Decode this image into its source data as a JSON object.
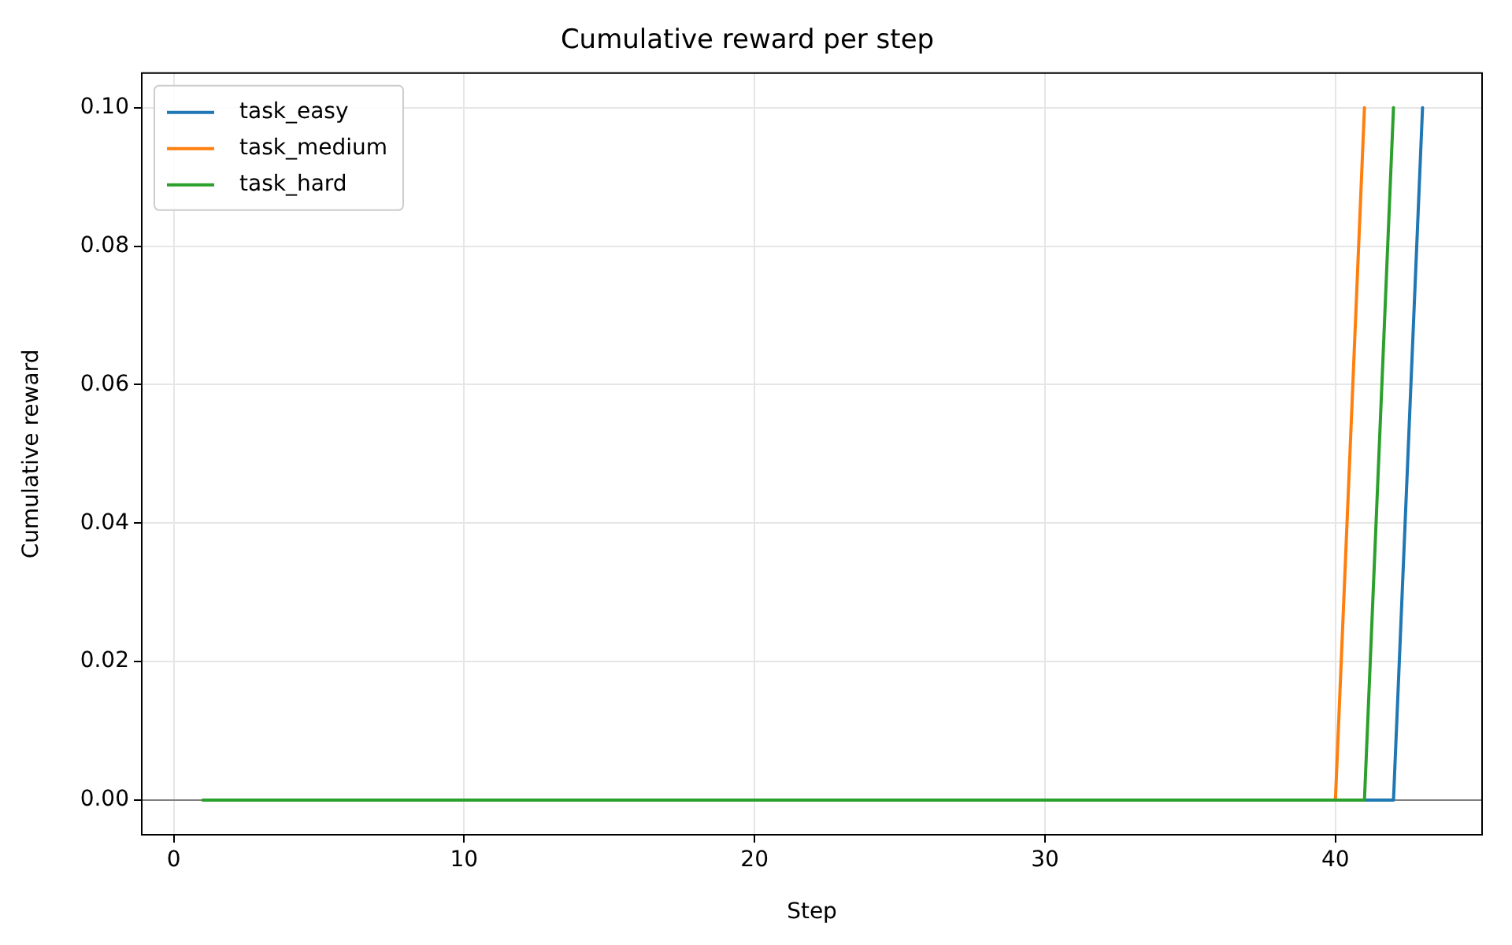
{
  "chart_data": {
    "type": "line",
    "title": "Cumulative reward per step",
    "xlabel": "Step",
    "ylabel": "Cumulative reward",
    "x": [
      1,
      2,
      3,
      4,
      5,
      6,
      7,
      8,
      9,
      10,
      11,
      12,
      13,
      14,
      15,
      16,
      17,
      18,
      19,
      20,
      21,
      22,
      23,
      24,
      25,
      26,
      27,
      28,
      29,
      30,
      31,
      32,
      33,
      34,
      35,
      36,
      37,
      38,
      39,
      40,
      41,
      42,
      43
    ],
    "series": [
      {
        "name": "task_easy",
        "color": "#1f77b4",
        "values": [
          null,
          null,
          null,
          null,
          null,
          null,
          null,
          null,
          null,
          null,
          null,
          null,
          null,
          null,
          null,
          null,
          null,
          null,
          null,
          null,
          null,
          null,
          null,
          null,
          null,
          null,
          null,
          null,
          null,
          null,
          null,
          null,
          null,
          null,
          null,
          null,
          null,
          null,
          null,
          null,
          0,
          0,
          0.1
        ]
      },
      {
        "name": "task_medium",
        "color": "#ff7f0e",
        "values": [
          null,
          null,
          null,
          null,
          null,
          null,
          null,
          null,
          null,
          null,
          null,
          null,
          null,
          null,
          null,
          null,
          null,
          null,
          null,
          null,
          null,
          null,
          null,
          null,
          null,
          null,
          null,
          null,
          null,
          null,
          null,
          null,
          null,
          null,
          null,
          null,
          null,
          null,
          null,
          0,
          0.1,
          null,
          null
        ]
      },
      {
        "name": "task_hard",
        "color": "#2ca02c",
        "values": [
          0,
          0,
          0,
          0,
          0,
          0,
          0,
          0,
          0,
          0,
          0,
          0,
          0,
          0,
          0,
          0,
          0,
          0,
          0,
          0,
          0,
          0,
          0,
          0,
          0,
          0,
          0,
          0,
          0,
          0,
          0,
          0,
          0,
          0,
          0,
          0,
          0,
          0,
          0,
          0,
          0,
          0.1,
          null
        ]
      }
    ],
    "xlim": [
      -1.1,
      45.05
    ],
    "xticks": [
      0,
      10,
      20,
      30,
      40
    ],
    "ylim": [
      -0.005,
      0.105
    ],
    "yticks": [
      {
        "value": 0,
        "label": "0.00"
      },
      {
        "value": 0.02,
        "label": "0.02"
      },
      {
        "value": 0.04,
        "label": "0.04"
      },
      {
        "value": 0.06,
        "label": "0.06"
      },
      {
        "value": 0.08,
        "label": "0.08"
      },
      {
        "value": 0.1,
        "label": "0.10"
      }
    ],
    "ref_lines": [
      {
        "axis": "y",
        "value": 0,
        "color": "#808080"
      }
    ],
    "grid": true,
    "legend": "top left",
    "marker": "none",
    "line_style": "solid"
  }
}
